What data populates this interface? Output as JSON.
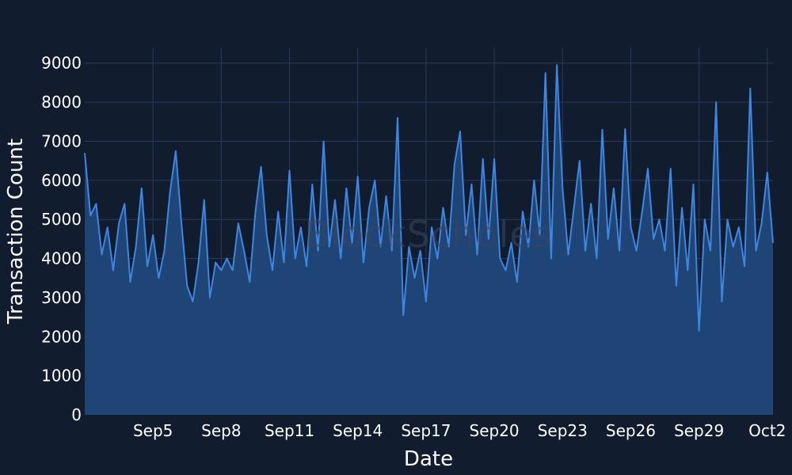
{
  "chart_data": {
    "type": "area",
    "xlabel": "Date",
    "ylabel": "Transaction Count",
    "ylim": [
      0,
      9400
    ],
    "y_ticks": [
      0,
      1000,
      2000,
      3000,
      4000,
      5000,
      6000,
      7000,
      8000,
      9000
    ],
    "x_range": [
      "2023-09-02T00:00",
      "2023-10-02T06:00"
    ],
    "x_ticks": [
      {
        "date": "2023-09-05",
        "label": "Sep5"
      },
      {
        "date": "2023-09-08",
        "label": "Sep8"
      },
      {
        "date": "2023-09-11",
        "label": "Sep11"
      },
      {
        "date": "2023-09-14",
        "label": "Sep14"
      },
      {
        "date": "2023-09-17",
        "label": "Sep17"
      },
      {
        "date": "2023-09-20",
        "label": "Sep20"
      },
      {
        "date": "2023-09-23",
        "label": "Sep23"
      },
      {
        "date": "2023-09-26",
        "label": "Sep26"
      },
      {
        "date": "2023-09-29",
        "label": "Sep29"
      },
      {
        "date": "2023-10-02",
        "label": "Oct2"
      }
    ],
    "grid": true,
    "watermark": "BlockScholes",
    "colors": {
      "line": "#3f86e0",
      "fill": "#1f4577",
      "background": "#121c2f",
      "grid": "#2a3a5c"
    },
    "series": [
      {
        "points": [
          [
            "2023-09-02T00:00",
            6700
          ],
          [
            "2023-09-02T06:00",
            5100
          ],
          [
            "2023-09-02T12:00",
            5400
          ],
          [
            "2023-09-02T18:00",
            4100
          ],
          [
            "2023-09-03T00:00",
            4800
          ],
          [
            "2023-09-03T06:00",
            3700
          ],
          [
            "2023-09-03T12:00",
            4900
          ],
          [
            "2023-09-03T18:00",
            5400
          ],
          [
            "2023-09-04T00:00",
            3400
          ],
          [
            "2023-09-04T06:00",
            4300
          ],
          [
            "2023-09-04T12:00",
            5800
          ],
          [
            "2023-09-04T18:00",
            3800
          ],
          [
            "2023-09-05T00:00",
            4600
          ],
          [
            "2023-09-05T06:00",
            3500
          ],
          [
            "2023-09-05T12:00",
            4200
          ],
          [
            "2023-09-05T18:00",
            5700
          ],
          [
            "2023-09-06T00:00",
            6750
          ],
          [
            "2023-09-06T06:00",
            4900
          ],
          [
            "2023-09-06T12:00",
            3300
          ],
          [
            "2023-09-06T18:00",
            2900
          ],
          [
            "2023-09-07T00:00",
            3900
          ],
          [
            "2023-09-07T06:00",
            5500
          ],
          [
            "2023-09-07T12:00",
            3000
          ],
          [
            "2023-09-07T18:00",
            3900
          ],
          [
            "2023-09-08T00:00",
            3700
          ],
          [
            "2023-09-08T06:00",
            4000
          ],
          [
            "2023-09-08T12:00",
            3700
          ],
          [
            "2023-09-08T18:00",
            4900
          ],
          [
            "2023-09-09T00:00",
            4200
          ],
          [
            "2023-09-09T06:00",
            3400
          ],
          [
            "2023-09-09T12:00",
            5200
          ],
          [
            "2023-09-09T18:00",
            6350
          ],
          [
            "2023-09-10T00:00",
            4600
          ],
          [
            "2023-09-10T06:00",
            3700
          ],
          [
            "2023-09-10T12:00",
            5200
          ],
          [
            "2023-09-10T18:00",
            3900
          ],
          [
            "2023-09-11T00:00",
            6250
          ],
          [
            "2023-09-11T06:00",
            4000
          ],
          [
            "2023-09-11T12:00",
            4800
          ],
          [
            "2023-09-11T18:00",
            3800
          ],
          [
            "2023-09-12T00:00",
            5900
          ],
          [
            "2023-09-12T06:00",
            4200
          ],
          [
            "2023-09-12T12:00",
            7000
          ],
          [
            "2023-09-12T18:00",
            4300
          ],
          [
            "2023-09-13T00:00",
            5500
          ],
          [
            "2023-09-13T06:00",
            4000
          ],
          [
            "2023-09-13T12:00",
            5800
          ],
          [
            "2023-09-13T18:00",
            4400
          ],
          [
            "2023-09-14T00:00",
            6100
          ],
          [
            "2023-09-14T06:00",
            3900
          ],
          [
            "2023-09-14T12:00",
            5300
          ],
          [
            "2023-09-14T18:00",
            6000
          ],
          [
            "2023-09-15T00:00",
            4300
          ],
          [
            "2023-09-15T06:00",
            5600
          ],
          [
            "2023-09-15T12:00",
            4200
          ],
          [
            "2023-09-15T18:00",
            7600
          ],
          [
            "2023-09-16T00:00",
            2550
          ],
          [
            "2023-09-16T06:00",
            4300
          ],
          [
            "2023-09-16T12:00",
            3500
          ],
          [
            "2023-09-16T18:00",
            4200
          ],
          [
            "2023-09-17T00:00",
            2900
          ],
          [
            "2023-09-17T06:00",
            4800
          ],
          [
            "2023-09-17T12:00",
            4000
          ],
          [
            "2023-09-17T18:00",
            5300
          ],
          [
            "2023-09-18T00:00",
            4300
          ],
          [
            "2023-09-18T06:00",
            6400
          ],
          [
            "2023-09-18T12:00",
            7250
          ],
          [
            "2023-09-18T18:00",
            4600
          ],
          [
            "2023-09-19T00:00",
            5900
          ],
          [
            "2023-09-19T06:00",
            4100
          ],
          [
            "2023-09-19T12:00",
            6550
          ],
          [
            "2023-09-19T18:00",
            4500
          ],
          [
            "2023-09-20T00:00",
            6550
          ],
          [
            "2023-09-20T06:00",
            4000
          ],
          [
            "2023-09-20T12:00",
            3700
          ],
          [
            "2023-09-20T18:00",
            4400
          ],
          [
            "2023-09-21T00:00",
            3400
          ],
          [
            "2023-09-21T06:00",
            5200
          ],
          [
            "2023-09-21T12:00",
            4300
          ],
          [
            "2023-09-21T18:00",
            6000
          ],
          [
            "2023-09-22T00:00",
            4600
          ],
          [
            "2023-09-22T06:00",
            8750
          ],
          [
            "2023-09-22T12:00",
            4000
          ],
          [
            "2023-09-22T18:00",
            8950
          ],
          [
            "2023-09-23T00:00",
            5800
          ],
          [
            "2023-09-23T06:00",
            4100
          ],
          [
            "2023-09-23T12:00",
            5300
          ],
          [
            "2023-09-23T18:00",
            6500
          ],
          [
            "2023-09-24T00:00",
            4200
          ],
          [
            "2023-09-24T06:00",
            5400
          ],
          [
            "2023-09-24T12:00",
            4000
          ],
          [
            "2023-09-24T18:00",
            7300
          ],
          [
            "2023-09-25T00:00",
            4500
          ],
          [
            "2023-09-25T06:00",
            5800
          ],
          [
            "2023-09-25T12:00",
            4200
          ],
          [
            "2023-09-25T18:00",
            7320
          ],
          [
            "2023-09-26T00:00",
            4800
          ],
          [
            "2023-09-26T06:00",
            4200
          ],
          [
            "2023-09-26T12:00",
            5200
          ],
          [
            "2023-09-26T18:00",
            6300
          ],
          [
            "2023-09-27T00:00",
            4500
          ],
          [
            "2023-09-27T06:00",
            5000
          ],
          [
            "2023-09-27T12:00",
            4200
          ],
          [
            "2023-09-27T18:00",
            6300
          ],
          [
            "2023-09-28T00:00",
            3300
          ],
          [
            "2023-09-28T06:00",
            5300
          ],
          [
            "2023-09-28T12:00",
            3700
          ],
          [
            "2023-09-28T18:00",
            5900
          ],
          [
            "2023-09-29T00:00",
            2150
          ],
          [
            "2023-09-29T06:00",
            5000
          ],
          [
            "2023-09-29T12:00",
            4200
          ],
          [
            "2023-09-29T18:00",
            8000
          ],
          [
            "2023-09-30T00:00",
            2900
          ],
          [
            "2023-09-30T06:00",
            5000
          ],
          [
            "2023-09-30T12:00",
            4300
          ],
          [
            "2023-09-30T18:00",
            4800
          ],
          [
            "2023-10-01T00:00",
            3800
          ],
          [
            "2023-10-01T06:00",
            8350
          ],
          [
            "2023-10-01T12:00",
            4200
          ],
          [
            "2023-10-01T18:00",
            4900
          ],
          [
            "2023-10-02T00:00",
            6200
          ],
          [
            "2023-10-02T06:00",
            4400
          ]
        ]
      }
    ]
  }
}
